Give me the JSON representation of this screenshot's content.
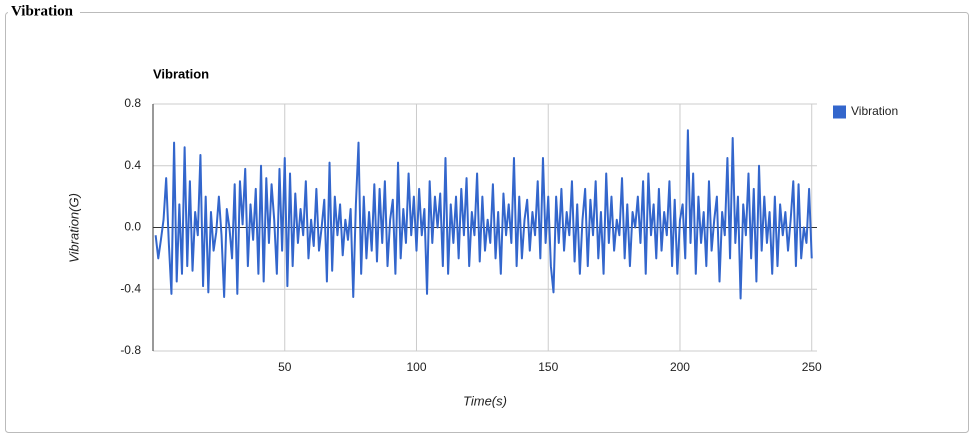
{
  "panel": {
    "title": "Vibration"
  },
  "chart_data": {
    "type": "line",
    "title": "Vibration",
    "x_label": "Time(s)",
    "y_label": "Vibration(G)",
    "x": [
      1,
      2,
      3,
      4,
      5,
      6,
      7,
      8,
      9,
      10,
      11,
      12,
      13,
      14,
      15,
      16,
      17,
      18,
      19,
      20,
      21,
      22,
      23,
      24,
      25,
      26,
      27,
      28,
      29,
      30,
      31,
      32,
      33,
      34,
      35,
      36,
      37,
      38,
      39,
      40,
      41,
      42,
      43,
      44,
      45,
      46,
      47,
      48,
      49,
      50,
      51,
      52,
      53,
      54,
      55,
      56,
      57,
      58,
      59,
      60,
      61,
      62,
      63,
      64,
      65,
      66,
      67,
      68,
      69,
      70,
      71,
      72,
      73,
      74,
      75,
      76,
      77,
      78,
      79,
      80,
      81,
      82,
      83,
      84,
      85,
      86,
      87,
      88,
      89,
      90,
      91,
      92,
      93,
      94,
      95,
      96,
      97,
      98,
      99,
      100,
      101,
      102,
      103,
      104,
      105,
      106,
      107,
      108,
      109,
      110,
      111,
      112,
      113,
      114,
      115,
      116,
      117,
      118,
      119,
      120,
      121,
      122,
      123,
      124,
      125,
      126,
      127,
      128,
      129,
      130,
      131,
      132,
      133,
      134,
      135,
      136,
      137,
      138,
      139,
      140,
      141,
      142,
      143,
      144,
      145,
      146,
      147,
      148,
      149,
      150,
      151,
      152,
      153,
      154,
      155,
      156,
      157,
      158,
      159,
      160,
      161,
      162,
      163,
      164,
      165,
      166,
      167,
      168,
      169,
      170,
      171,
      172,
      173,
      174,
      175,
      176,
      177,
      178,
      179,
      180,
      181,
      182,
      183,
      184,
      185,
      186,
      187,
      188,
      189,
      190,
      191,
      192,
      193,
      194,
      195,
      196,
      197,
      198,
      199,
      200,
      201,
      202,
      203,
      204,
      205,
      206,
      207,
      208,
      209,
      210,
      211,
      212,
      213,
      214,
      215,
      216,
      217,
      218,
      219,
      220,
      221,
      222,
      223,
      224,
      225,
      226,
      227,
      228,
      229,
      230,
      231,
      232,
      233,
      234,
      235,
      236,
      237,
      238,
      239,
      240,
      241,
      242,
      243,
      244,
      245,
      246,
      247,
      248,
      249,
      250
    ],
    "series": [
      {
        "name": "Vibration",
        "color": "#3366cc",
        "values": [
          -0.05,
          -0.2,
          -0.08,
          0.05,
          0.32,
          -0.1,
          -0.43,
          0.55,
          -0.35,
          0.15,
          -0.3,
          0.52,
          -0.25,
          0.3,
          -0.28,
          0.1,
          -0.05,
          0.47,
          -0.38,
          0.2,
          -0.42,
          0.1,
          -0.15,
          -0.03,
          0.2,
          -0.05,
          -0.45,
          0.12,
          0.0,
          -0.2,
          0.28,
          -0.43,
          0.3,
          0.02,
          0.38,
          -0.25,
          0.15,
          -0.08,
          0.25,
          -0.3,
          0.4,
          -0.35,
          0.32,
          -0.1,
          0.28,
          0.05,
          -0.3,
          0.38,
          -0.15,
          0.45,
          -0.38,
          0.35,
          -0.25,
          0.22,
          -0.1,
          0.12,
          -0.05,
          0.3,
          -0.2,
          0.05,
          -0.12,
          0.25,
          -0.15,
          0.0,
          0.18,
          -0.35,
          0.42,
          -0.28,
          0.2,
          -0.05,
          0.15,
          -0.18,
          0.05,
          -0.08,
          0.12,
          -0.45,
          0.15,
          0.55,
          -0.3,
          0.2,
          -0.2,
          0.1,
          -0.15,
          0.28,
          -0.22,
          0.25,
          -0.1,
          0.3,
          -0.25,
          0.05,
          0.18,
          -0.3,
          0.42,
          -0.2,
          0.12,
          -0.1,
          0.35,
          -0.05,
          0.2,
          -0.15,
          0.25,
          -0.05,
          0.12,
          -0.43,
          0.3,
          -0.1,
          0.2,
          0.0,
          0.22,
          -0.25,
          0.45,
          -0.3,
          0.15,
          -0.1,
          0.2,
          -0.2,
          0.25,
          -0.05,
          0.32,
          -0.25,
          0.1,
          -0.05,
          0.35,
          -0.22,
          0.2,
          -0.15,
          0.05,
          -0.1,
          0.28,
          -0.2,
          0.1,
          -0.3,
          0.22,
          -0.05,
          0.15,
          -0.1,
          0.45,
          -0.25,
          0.2,
          -0.2,
          0.05,
          0.18,
          -0.15,
          0.1,
          -0.05,
          0.3,
          -0.2,
          0.45,
          -0.1,
          0.2,
          -0.25,
          -0.42,
          0.2,
          -0.1,
          0.25,
          -0.15,
          0.1,
          -0.05,
          0.3,
          -0.22,
          0.15,
          -0.3,
          0.05,
          0.25,
          -0.25,
          0.18,
          -0.05,
          0.3,
          -0.2,
          0.1,
          -0.3,
          0.35,
          -0.1,
          0.2,
          -0.15,
          0.05,
          -0.05,
          0.32,
          -0.2,
          0.15,
          -0.25,
          0.1,
          0.0,
          0.2,
          -0.1,
          0.3,
          -0.3,
          0.35,
          -0.05,
          0.15,
          -0.2,
          0.25,
          -0.15,
          0.1,
          -0.05,
          0.3,
          -0.25,
          0.18,
          -0.3,
          0.05,
          0.15,
          -0.2,
          0.63,
          -0.1,
          0.35,
          -0.3,
          0.2,
          -0.1,
          0.1,
          -0.25,
          0.3,
          -0.15,
          0.05,
          0.2,
          -0.35,
          0.1,
          -0.05,
          0.45,
          -0.2,
          0.58,
          -0.1,
          0.2,
          -0.46,
          0.15,
          -0.05,
          0.35,
          -0.2,
          0.25,
          -0.35,
          0.4,
          -0.15,
          0.2,
          -0.1,
          0.1,
          -0.3,
          0.2,
          -0.25,
          0.15,
          -0.05,
          0.1,
          -0.15,
          0.05,
          0.3,
          -0.25,
          0.28,
          -0.2,
          0.0,
          -0.1,
          0.25,
          -0.2
        ]
      }
    ],
    "xlim": [
      0,
      252
    ],
    "xticks": [
      50,
      100,
      150,
      200,
      250
    ],
    "ylim": [
      -0.8,
      0.8
    ],
    "yticks": [
      -0.8,
      -0.4,
      {
        "value": 0,
        "label": "0.0"
      },
      0.4,
      0.8
    ],
    "grid": true,
    "legend": "right"
  }
}
